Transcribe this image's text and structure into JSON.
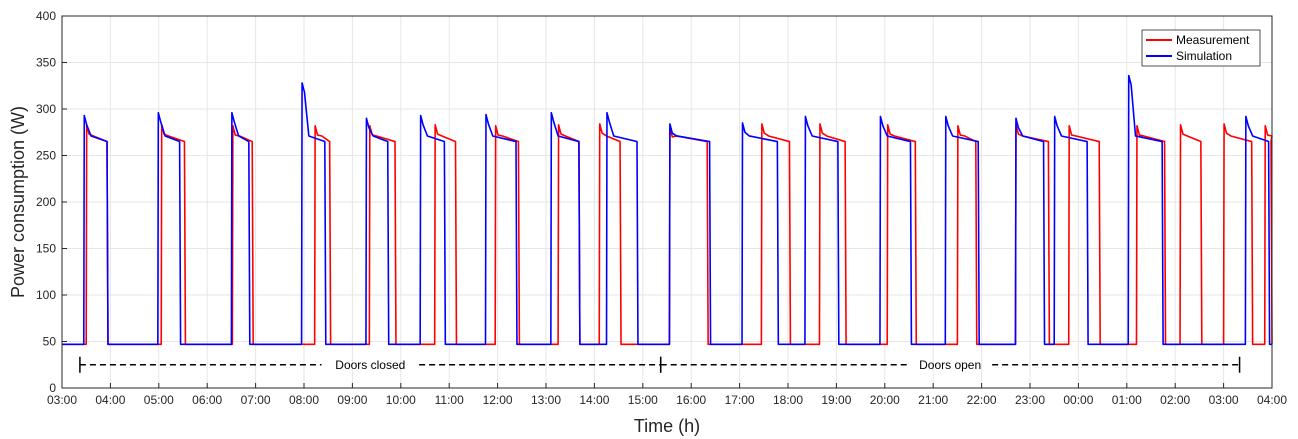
{
  "chart_data": {
    "type": "line",
    "title": "",
    "xlabel": "Time (h)",
    "ylabel": "Power consumption (W)",
    "ylim": [
      0,
      400
    ],
    "xlim": [
      0,
      25
    ],
    "grid": true,
    "legend_position": "top-right",
    "x_tick_labels": [
      "03:00",
      "04:00",
      "05:00",
      "06:00",
      "07:00",
      "08:00",
      "09:00",
      "10:00",
      "11:00",
      "12:00",
      "13:00",
      "14:00",
      "15:00",
      "16:00",
      "17:00",
      "18:00",
      "19:00",
      "20:00",
      "21:00",
      "22:00",
      "23:00",
      "00:00",
      "01:00",
      "02:00",
      "03:00",
      "04:00"
    ],
    "y_ticks": [
      0,
      50,
      100,
      150,
      200,
      250,
      300,
      350,
      400
    ],
    "colors": {
      "measurement": "#ff0000",
      "simulation": "#0000ff"
    },
    "series": [
      {
        "name": "Measurement",
        "color": "#ff0000",
        "off_level": 47,
        "on_level": 265,
        "cycles": [
          [
            0.5,
            0.95,
            283
          ],
          [
            2.05,
            2.55,
            283
          ],
          [
            3.52,
            3.95,
            282
          ],
          [
            5.22,
            5.55,
            282
          ],
          [
            6.35,
            6.9,
            282
          ],
          [
            7.7,
            8.15,
            283
          ],
          [
            8.95,
            9.45,
            282
          ],
          [
            10.25,
            10.7,
            283
          ],
          [
            11.1,
            11.55,
            284
          ],
          [
            12.55,
            13.35,
            280
          ],
          [
            14.45,
            15.05,
            284
          ],
          [
            15.65,
            16.2,
            284
          ],
          [
            17.05,
            17.65,
            283
          ],
          [
            18.5,
            18.9,
            282
          ],
          [
            19.7,
            20.4,
            283
          ],
          [
            20.8,
            21.45,
            282
          ],
          [
            22.2,
            22.8,
            282
          ],
          [
            23.1,
            23.55,
            283
          ],
          [
            24.0,
            24.6,
            284
          ],
          [
            24.85,
            25.0,
            282
          ]
        ]
      },
      {
        "name": "Simulation",
        "color": "#0000ff",
        "off_level": 47,
        "on_level": 265,
        "cycles": [
          [
            0.45,
            0.95,
            293
          ],
          [
            1.98,
            2.45,
            296
          ],
          [
            3.5,
            3.88,
            296
          ],
          [
            4.95,
            5.45,
            328
          ],
          [
            6.28,
            6.75,
            290
          ],
          [
            7.4,
            7.92,
            293
          ],
          [
            8.75,
            9.4,
            294
          ],
          [
            10.1,
            10.7,
            296
          ],
          [
            11.25,
            11.9,
            296
          ],
          [
            12.55,
            13.4,
            284
          ],
          [
            14.05,
            14.8,
            285
          ],
          [
            15.35,
            16.05,
            292
          ],
          [
            16.9,
            17.55,
            292
          ],
          [
            18.25,
            18.95,
            292
          ],
          [
            19.7,
            20.3,
            290
          ],
          [
            20.5,
            21.2,
            292
          ],
          [
            22.03,
            22.75,
            336
          ],
          [
            24.45,
            24.95,
            292
          ]
        ]
      }
    ],
    "annotations": [
      {
        "text": "Doors closed",
        "x_start": 0.37,
        "x_end": 12.37
      },
      {
        "text": "Doors open",
        "x_start": 12.37,
        "x_end": 24.33
      }
    ]
  }
}
